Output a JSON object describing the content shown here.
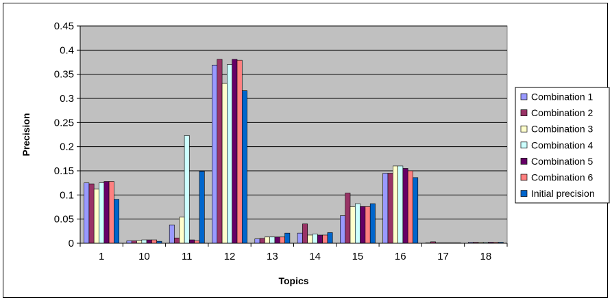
{
  "chart_data": {
    "type": "bar",
    "title": "",
    "xlabel": "Topics",
    "ylabel": "Precision",
    "categories": [
      "1",
      "10",
      "11",
      "12",
      "13",
      "14",
      "15",
      "16",
      "17",
      "18"
    ],
    "ylim": [
      0,
      0.45
    ],
    "yticks": [
      0,
      0.05,
      0.1,
      0.15,
      0.2,
      0.25,
      0.3,
      0.35,
      0.4,
      0.45
    ],
    "ytick_labels": [
      "0",
      "0.05",
      "0.1",
      "0.15",
      "0.2",
      "0.25",
      "0.3",
      "0.35",
      "0.4",
      "0.45"
    ],
    "grid": "horizontal",
    "plot_background": "#c0c0c0",
    "legend_position": "right",
    "series": [
      {
        "name": "Combination 1",
        "color": "#9999ff",
        "values": [
          0.125,
          0.005,
          0.038,
          0.369,
          0.009,
          0.021,
          0.057,
          0.145,
          0.001,
          0.002
        ]
      },
      {
        "name": "Combination 2",
        "color": "#993366",
        "values": [
          0.123,
          0.005,
          0.011,
          0.381,
          0.01,
          0.04,
          0.104,
          0.145,
          0.003,
          0.002
        ]
      },
      {
        "name": "Combination 3",
        "color": "#ffffcc",
        "values": [
          0.112,
          0.005,
          0.054,
          0.331,
          0.013,
          0.017,
          0.076,
          0.16,
          0.001,
          0.002
        ]
      },
      {
        "name": "Combination 4",
        "color": "#ccffff",
        "values": [
          0.125,
          0.007,
          0.223,
          0.37,
          0.013,
          0.019,
          0.082,
          0.16,
          0.001,
          0.002
        ]
      },
      {
        "name": "Combination 5",
        "color": "#660066",
        "values": [
          0.128,
          0.007,
          0.007,
          0.381,
          0.013,
          0.017,
          0.076,
          0.155,
          0.001,
          0.002
        ]
      },
      {
        "name": "Combination 6",
        "color": "#ff8080",
        "values": [
          0.128,
          0.007,
          0.005,
          0.379,
          0.013,
          0.017,
          0.076,
          0.15,
          0.001,
          0.002
        ]
      },
      {
        "name": "Initial precision",
        "color": "#0066cc",
        "values": [
          0.091,
          0.004,
          0.149,
          0.316,
          0.021,
          0.022,
          0.082,
          0.136,
          0.001,
          0.002
        ]
      }
    ]
  }
}
